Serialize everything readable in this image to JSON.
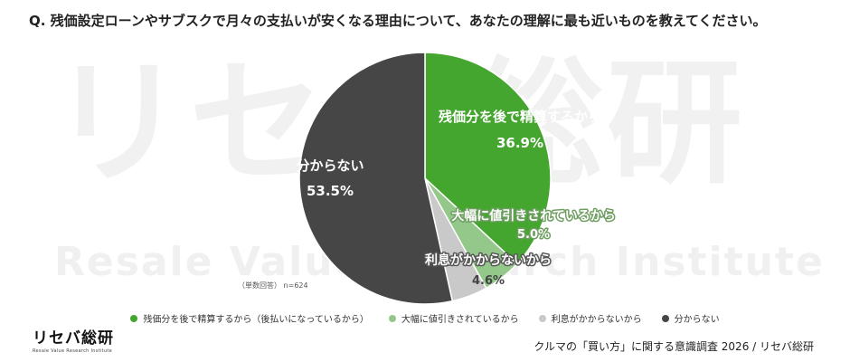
{
  "question": "Q. 残価設定ローンやサブスクで月々の支払いが安くなる理由について、あなたの理解に最も近いものを教えてください。",
  "watermark": {
    "main": "リセバ総研",
    "sub": "Resale Value Research Institute"
  },
  "sample_note": "（単数回答） n=624",
  "footer": "クルマの「買い方」に関する意識調査 2026 / リセバ総研",
  "brand": {
    "main": "リセバ総研",
    "sub": "Resale Value Research Institute"
  },
  "colors": {
    "green": "#44a62f",
    "light_green": "#94c88a",
    "light_gray": "#c9c9c9",
    "dark_gray": "#464646"
  },
  "chart_data": {
    "type": "pie",
    "title": "",
    "slices": [
      {
        "label": "残価分を後で精算するから",
        "legend": "残価分を後で精算するから（後払いになっているから）",
        "value": 36.9,
        "value_label": "36.9%",
        "color": "#44a62f"
      },
      {
        "label": "大幅に値引きされているから",
        "legend": "大幅に値引きされているから",
        "value": 5.0,
        "value_label": "5.0%",
        "color": "#94c88a"
      },
      {
        "label": "利息がかからないから",
        "legend": "利息がかからないから",
        "value": 4.6,
        "value_label": "4.6%",
        "color": "#c9c9c9"
      },
      {
        "label": "分からない",
        "legend": "分からない",
        "value": 53.5,
        "value_label": "53.5%",
        "color": "#464646"
      }
    ],
    "start_angle": "12 o'clock",
    "direction": "clockwise",
    "legend_position": "bottom"
  }
}
